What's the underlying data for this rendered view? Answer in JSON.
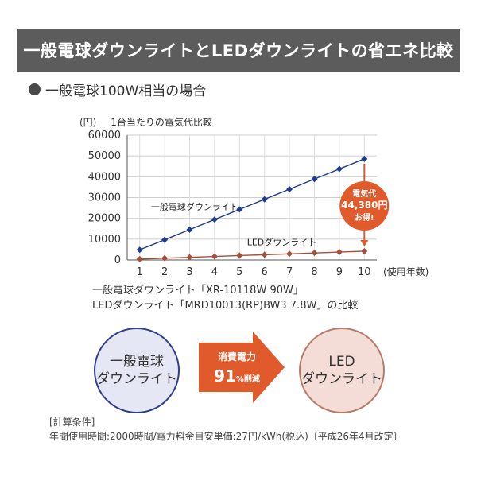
{
  "banner": {
    "title": "一般電球ダウンライトとLEDダウンライトの省エネ比較"
  },
  "section": {
    "heading": "一般電球100W相当の場合"
  },
  "chart_caption": {
    "unit": "(円)",
    "title": "1台当たりの電気代比較"
  },
  "chart_data": {
    "type": "line",
    "x": [
      1,
      2,
      3,
      4,
      5,
      6,
      7,
      8,
      9,
      10
    ],
    "xlabel": "(使用年数)",
    "ylabel": "(円)",
    "ylim": [
      0,
      60000
    ],
    "yticks": [
      0,
      10000,
      20000,
      30000,
      40000,
      50000,
      60000
    ],
    "ytick_labels": [
      "0",
      "10000",
      "20000",
      "30000",
      "40000",
      "50000",
      "60000"
    ],
    "xtick_labels": [
      "1",
      "2",
      "3",
      "4",
      "5",
      "6",
      "7",
      "8",
      "9",
      "10"
    ],
    "grid": true,
    "series": [
      {
        "name": "一般電球ダウンライト",
        "color": "#1f3c8f",
        "values": [
          4860,
          9720,
          14580,
          19440,
          24300,
          29160,
          34020,
          38880,
          43740,
          48600
        ]
      },
      {
        "name": "LEDダウンライト",
        "color": "#a4503a",
        "values": [
          422,
          844,
          1266,
          1688,
          2110,
          2532,
          2954,
          3376,
          3798,
          4220
        ]
      }
    ],
    "annotation": {
      "lines": [
        "電気代",
        "44,380円",
        "お得!"
      ],
      "color": "#e05a2b"
    }
  },
  "comparison": {
    "line1": "一般電球ダウンライト「XR-10118W 90W」",
    "line2": "LEDダウンライト「MRD10013(RP)BW3 7.8W」の比較"
  },
  "bulb_circle": {
    "line1": "一般電球",
    "line2": "ダウンライト"
  },
  "arrow": {
    "label": "消費電力",
    "percent": "91",
    "suffix": "%削減",
    "color": "#e05a2b"
  },
  "led_circle": {
    "line1": "LED",
    "line2": "ダウンライト"
  },
  "notes": {
    "heading": "[計算条件]",
    "text": "年間使用時間:2000時間/電力料金目安単価:27円/kWh(税込)〔平成26年4月改定〕"
  }
}
